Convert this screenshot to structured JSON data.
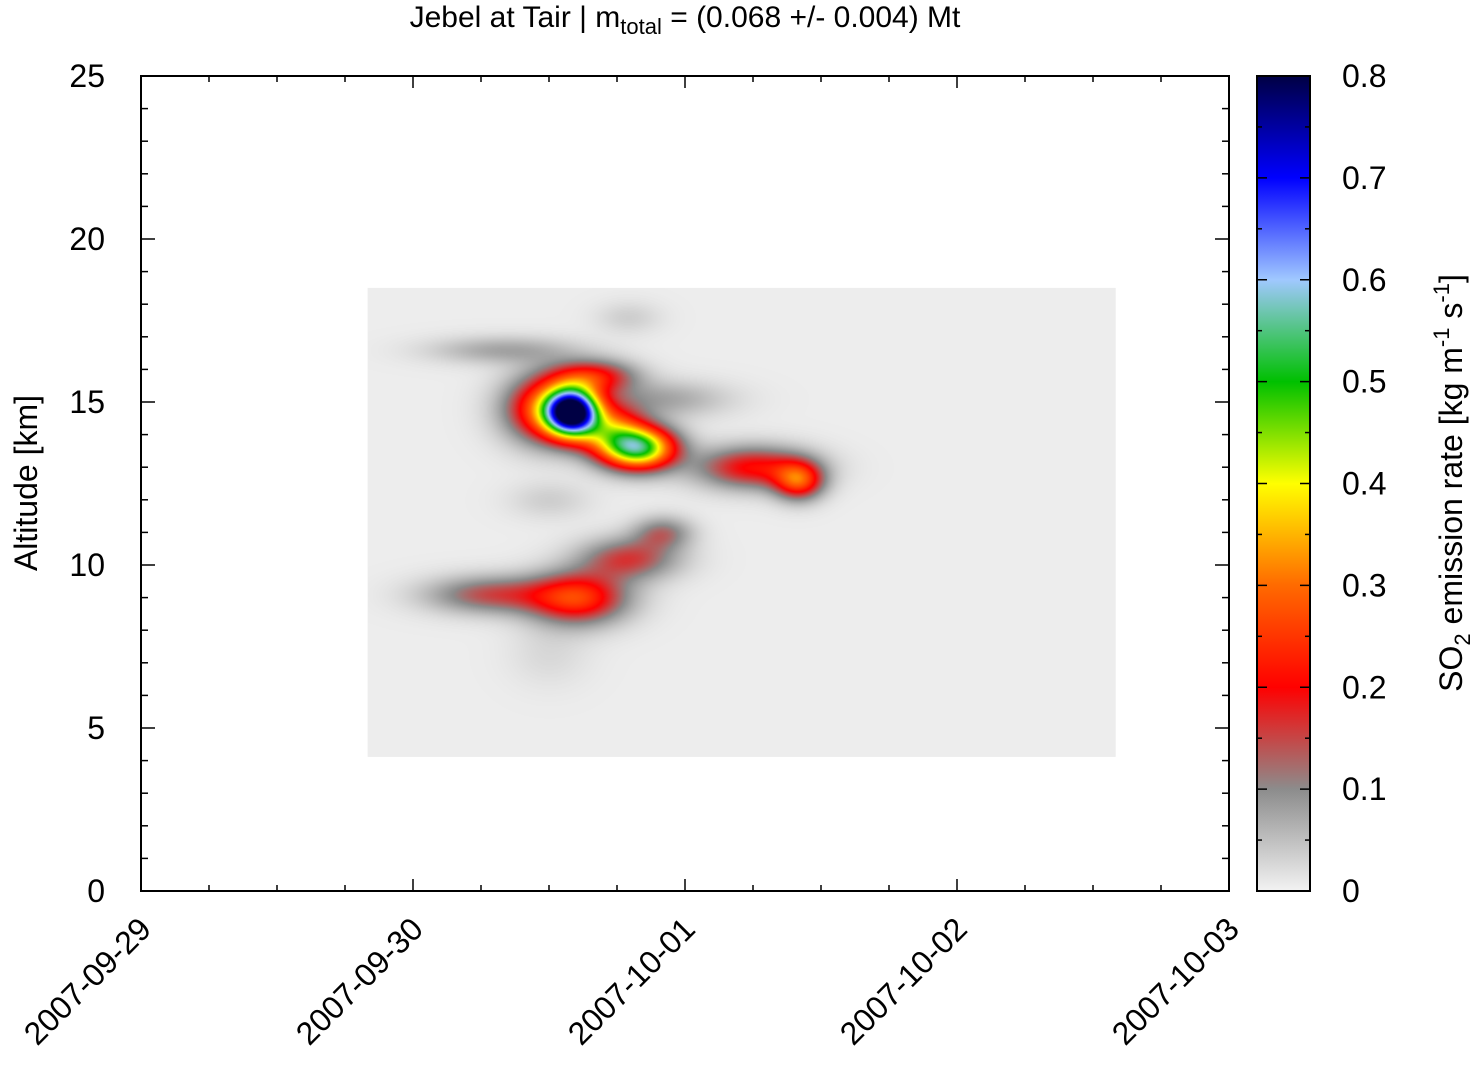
{
  "chart_data": {
    "type": "heatmap",
    "title": {
      "prefix": "Jebel at Tair | m",
      "subscript": "total",
      "suffix": " = (0.068 +/- 0.004) Mt"
    },
    "ylabel": "Altitude [km]",
    "xlim": [
      "2007-09-29",
      "2007-10-03"
    ],
    "ylim": [
      0,
      25
    ],
    "x_ticks": [
      "2007-09-29",
      "2007-09-30",
      "2007-10-01",
      "2007-10-02",
      "2007-10-03"
    ],
    "y_ticks": [
      "0",
      "5",
      "10",
      "15",
      "20",
      "25"
    ],
    "colorbar": {
      "label_parts": [
        "SO",
        "2",
        " emission rate [kg m",
        "-1",
        " s",
        "-1",
        "]"
      ],
      "range": [
        0,
        0.8
      ],
      "ticks": [
        "0",
        "0.1",
        "0.2",
        "0.3",
        "0.4",
        "0.5",
        "0.6",
        "0.7",
        "0.8"
      ],
      "colors": [
        {
          "v": 0.0,
          "c": "#f2f2f2"
        },
        {
          "v": 0.1,
          "c": "#8c8c8c"
        },
        {
          "v": 0.2,
          "c": "#ff0000"
        },
        {
          "v": 0.3,
          "c": "#ff6a00"
        },
        {
          "v": 0.4,
          "c": "#ffff00"
        },
        {
          "v": 0.5,
          "c": "#00c000"
        },
        {
          "v": 0.6,
          "c": "#a0c8ff"
        },
        {
          "v": 0.7,
          "c": "#0000ff"
        },
        {
          "v": 0.8,
          "c": "#000044"
        }
      ]
    },
    "field_extent": {
      "x": [
        "2007-09-29T20:00",
        "2007-10-02T14:00"
      ],
      "y": [
        4.1,
        18.5
      ]
    },
    "background_value": 0.005,
    "plumes": [
      {
        "x": "2007-09-30T14:00",
        "y": 14.7,
        "peak": 0.72,
        "sx_h": 1.6,
        "sy_km": 0.5
      },
      {
        "x": "2007-09-30T12:00",
        "y": 14.8,
        "peak": 0.3,
        "sx_h": 2.6,
        "sy_km": 0.7
      },
      {
        "x": "2007-09-30T20:00",
        "y": 13.6,
        "peak": 0.48,
        "sx_h": 2.2,
        "sy_km": 0.45
      },
      {
        "x": "2007-09-30T17:30",
        "y": 14.1,
        "peak": 0.26,
        "sx_h": 2.0,
        "sy_km": 0.55
      },
      {
        "x": "2007-10-01T06:00",
        "y": 13.0,
        "peak": 0.2,
        "sx_h": 3.5,
        "sy_km": 0.45
      },
      {
        "x": "2007-10-01T10:00",
        "y": 12.6,
        "peak": 0.24,
        "sx_h": 1.5,
        "sy_km": 0.4
      },
      {
        "x": "2007-09-30T16:00",
        "y": 15.8,
        "peak": 0.19,
        "sx_h": 2.5,
        "sy_km": 0.35
      },
      {
        "x": "2007-09-30T08:00",
        "y": 16.6,
        "peak": 0.07,
        "sx_h": 4.5,
        "sy_km": 0.3
      },
      {
        "x": "2007-09-30T22:00",
        "y": 15.1,
        "peak": 0.07,
        "sx_h": 4.0,
        "sy_km": 0.4
      },
      {
        "x": "2007-09-30T19:00",
        "y": 17.6,
        "peak": 0.03,
        "sx_h": 2.0,
        "sy_km": 0.35
      },
      {
        "x": "2007-09-30T14:30",
        "y": 9.0,
        "peak": 0.24,
        "sx_h": 3.0,
        "sy_km": 0.55
      },
      {
        "x": "2007-09-30T07:00",
        "y": 9.1,
        "peak": 0.14,
        "sx_h": 4.0,
        "sy_km": 0.4
      },
      {
        "x": "2007-09-30T19:00",
        "y": 10.2,
        "peak": 0.15,
        "sx_h": 3.0,
        "sy_km": 0.45
      },
      {
        "x": "2007-09-30T22:00",
        "y": 11.0,
        "peak": 0.11,
        "sx_h": 1.8,
        "sy_km": 0.35
      },
      {
        "x": "2007-09-30T12:00",
        "y": 12.0,
        "peak": 0.03,
        "sx_h": 2.5,
        "sy_km": 0.4
      },
      {
        "x": "2007-09-30T12:00",
        "y": 7.3,
        "peak": 0.02,
        "sx_h": 2.5,
        "sy_km": 0.7
      }
    ]
  }
}
